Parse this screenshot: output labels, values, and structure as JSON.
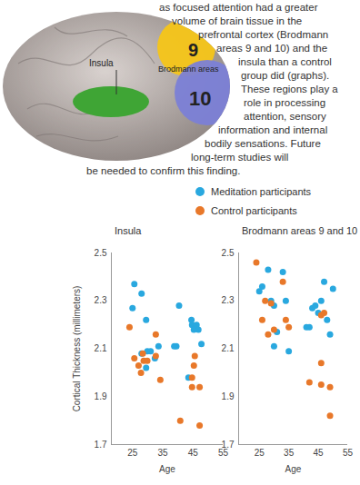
{
  "illustration": {
    "labels": {
      "insula": "Insula",
      "area_9": "9",
      "brodmann": "Brodmann areas",
      "area_10": "10"
    }
  },
  "caption": {
    "lines": [
      "as focused attention had a greater",
      "volume of brain tissue in the",
      "prefrontal cortex (Brodmann",
      "areas 9 and 10) and the",
      "insula than a control",
      "group did (graphs).",
      "These regions play a",
      "role in processing",
      "attention, sensory",
      "information and internal",
      "bodily sensations. Future",
      "long-term studies will",
      "be needed to confirm this finding."
    ]
  },
  "chart_data": [
    {
      "type": "scatter",
      "title": "Insula",
      "xlabel": "Age",
      "ylabel": "Cortical Thickness (millimeters)",
      "xlim": [
        18,
        55
      ],
      "xticks": [
        25,
        35,
        45,
        55
      ],
      "ylim": [
        1.7,
        2.5
      ],
      "yticks": [
        1.7,
        1.9,
        2.1,
        2.3,
        2.5
      ],
      "grid": false,
      "legend": "top",
      "marker": "circle",
      "series": [
        {
          "name": "Meditation participants",
          "color": "#29a8df",
          "x": [
            25.6,
            25,
            28,
            29.5,
            28,
            29.9,
            29.5,
            31,
            33.6,
            32.4,
            39.5,
            38.8,
            40.4,
            43.5,
            44.5,
            44.7,
            45.3,
            46.2,
            46.8,
            47.8
          ],
          "values": [
            2.37,
            2.27,
            2.33,
            2.22,
            2.08,
            2.09,
            2.02,
            2.09,
            2.11,
            2.06,
            2.11,
            2.11,
            2.28,
            1.98,
            2.22,
            2.2,
            2.18,
            2.2,
            2.18,
            2.12
          ]
        },
        {
          "name": "Control participants",
          "color": "#e8782a",
          "x": [
            24,
            25.6,
            27,
            28.4,
            28.7,
            27.8,
            29.9,
            32.7,
            34.2,
            32.7,
            40.8,
            44.7,
            44.7,
            45.6,
            47.2,
            47.2,
            45.3
          ],
          "values": [
            2.19,
            2.06,
            2.03,
            2.08,
            2.05,
            2.0,
            2.05,
            2.16,
            1.97,
            2.07,
            1.8,
            1.98,
            1.94,
            2.07,
            1.94,
            1.78,
            2.03
          ]
        }
      ]
    },
    {
      "type": "scatter",
      "title": "Brodmann areas 9 and 10",
      "xlabel": "Age",
      "xlim": [
        18,
        55
      ],
      "xticks": [
        25,
        35,
        45,
        55
      ],
      "ylim": [
        1.7,
        2.5
      ],
      "yticks": [
        1.7,
        1.9,
        2.1,
        2.3,
        2.5
      ],
      "grid": false,
      "marker": "circle",
      "series": [
        {
          "name": "Meditation participants",
          "color": "#29a8df",
          "x": [
            25,
            26,
            28,
            29,
            30,
            31,
            30,
            33,
            34,
            35,
            41,
            42,
            43,
            44,
            45,
            46,
            47,
            48,
            49,
            50
          ],
          "values": [
            2.34,
            2.36,
            2.43,
            2.3,
            2.28,
            2.17,
            2.11,
            2.42,
            2.3,
            2.09,
            2.19,
            2.19,
            2.27,
            2.28,
            2.25,
            2.3,
            2.38,
            2.22,
            2.16,
            2.35
          ]
        },
        {
          "name": "Control participants",
          "color": "#e8782a",
          "x": [
            24,
            26,
            27,
            28,
            29,
            30,
            33,
            34,
            35,
            42,
            46,
            46,
            47,
            46,
            49,
            49
          ],
          "values": [
            2.46,
            2.22,
            2.3,
            2.16,
            2.29,
            2.18,
            2.38,
            2.22,
            2.19,
            1.96,
            2.04,
            2.24,
            2.25,
            1.95,
            1.94,
            1.82
          ]
        }
      ]
    }
  ]
}
